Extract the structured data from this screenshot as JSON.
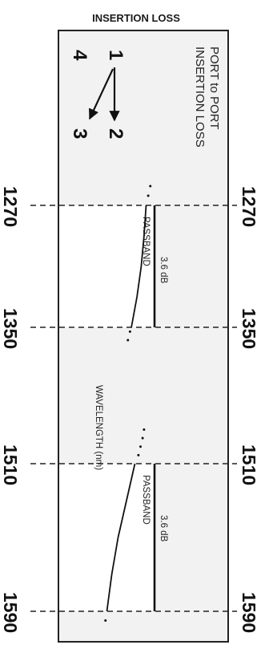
{
  "chart_data": {
    "type": "line",
    "title": "INSERTION LOSS",
    "legend": [
      "PORT to PORT",
      "INSERTION LOSS"
    ],
    "xlabel": "WAVELENGTH (nm)",
    "ylabel": "",
    "x_ticks": [
      1270,
      1350,
      1510,
      1590
    ],
    "ports": {
      "from": "1",
      "to_a": "2",
      "to_b": "3",
      "other": "4"
    },
    "passbands": [
      {
        "label": "PASSBAND",
        "start": 1270,
        "end": 1350,
        "loss_label": "3.6 dB",
        "loss_db": 3.6
      },
      {
        "label": "PASSBAND",
        "start": 1510,
        "end": 1590,
        "loss_label": "3.6 dB",
        "loss_db": 3.6
      }
    ],
    "series": [
      {
        "x": [
          1270,
          1290,
          1310,
          1330,
          1350
        ],
        "y": [
          3.0,
          2.85,
          2.65,
          2.35,
          1.95
        ]
      },
      {
        "x": [
          1510,
          1530,
          1550,
          1570,
          1590
        ],
        "y": [
          2.2,
          1.6,
          1.0,
          0.55,
          0.2
        ]
      }
    ],
    "dotted": [
      {
        "x": [
          1260,
          1265
        ],
        "y": [
          3.3,
          3.15
        ]
      },
      {
        "x": [
          1355,
          1365
        ],
        "y": [
          1.85,
          1.7
        ]
      },
      {
        "x": [
          1470,
          1480,
          1490,
          1500
        ],
        "y": [
          2.85,
          2.75,
          2.6,
          2.45
        ]
      },
      {
        "x": [
          1595
        ],
        "y": [
          0.1
        ]
      }
    ],
    "ylim": [
      0,
      3.6
    ],
    "grid": false
  }
}
